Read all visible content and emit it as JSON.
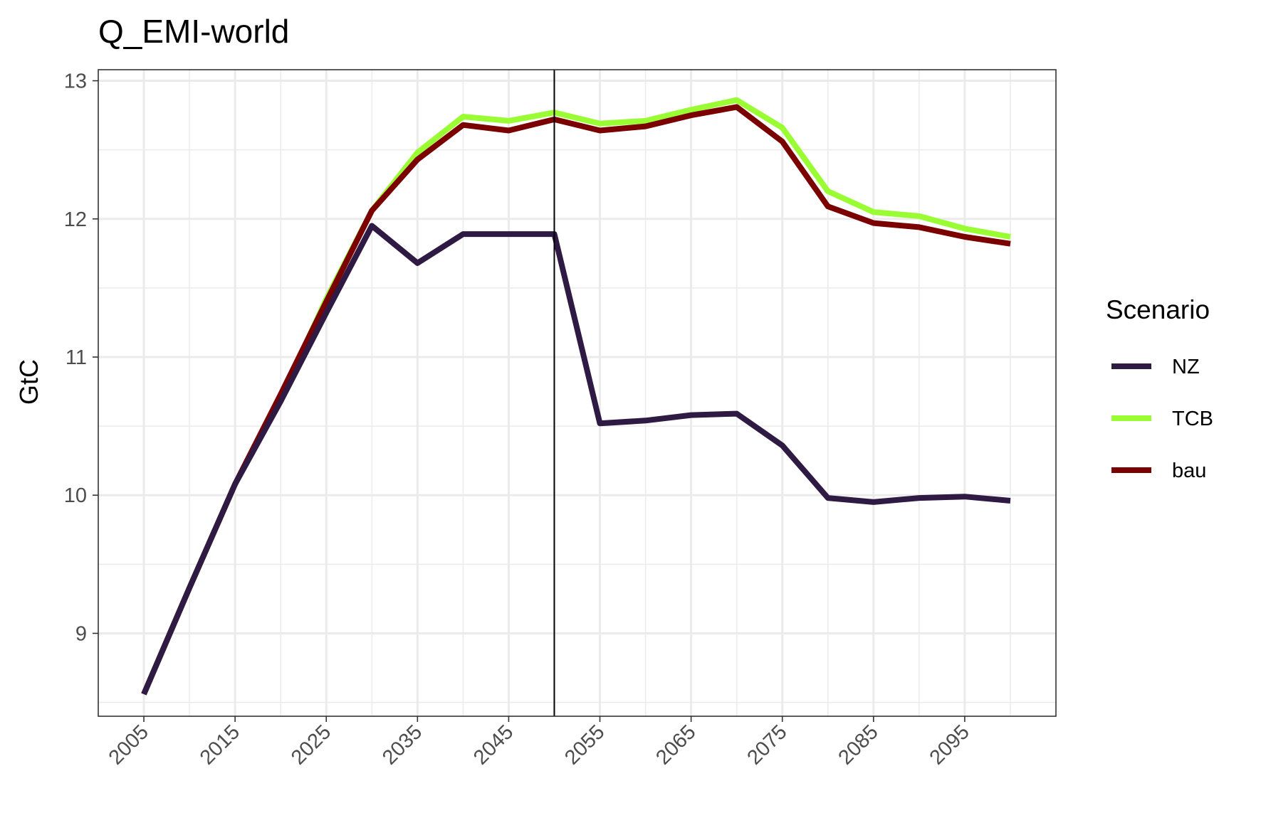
{
  "chart_data": {
    "type": "line",
    "title": "Q_EMI-world",
    "xlabel": "",
    "ylabel": "GtC",
    "xlim": [
      2000,
      2105
    ],
    "ylim": [
      8.4,
      13.08
    ],
    "x_ticks": [
      2005,
      2015,
      2025,
      2035,
      2045,
      2055,
      2065,
      2075,
      2085,
      2095
    ],
    "x_tick_labels": [
      "2005",
      "2015",
      "2025",
      "2035",
      "2045",
      "2055",
      "2065",
      "2075",
      "2085",
      "2095"
    ],
    "x_minor_grid": [
      2010,
      2020,
      2030,
      2040,
      2050,
      2060,
      2070,
      2080,
      2090,
      2100
    ],
    "y_ticks": [
      9,
      10,
      11,
      12,
      13
    ],
    "y_tick_labels": [
      "9",
      "10",
      "11",
      "12",
      "13"
    ],
    "y_minor_grid": [
      8.5,
      9.5,
      10.5,
      11.5,
      12.5
    ],
    "grid": true,
    "vline": 2050,
    "legend_title": "Scenario",
    "legend_position": "right",
    "x": [
      2005,
      2010,
      2015,
      2020,
      2025,
      2030,
      2035,
      2040,
      2045,
      2050,
      2055,
      2060,
      2065,
      2070,
      2075,
      2080,
      2085,
      2090,
      2095,
      2100
    ],
    "series": [
      {
        "name": "TCB",
        "color": "#9afc33",
        "values": [
          8.56,
          9.33,
          10.08,
          10.7,
          11.42,
          12.06,
          12.48,
          12.74,
          12.71,
          12.77,
          12.69,
          12.71,
          12.79,
          12.86,
          12.66,
          12.2,
          12.05,
          12.02,
          11.93,
          11.87
        ]
      },
      {
        "name": "bau",
        "color": "#7b0000",
        "values": [
          8.56,
          9.33,
          10.08,
          10.73,
          11.4,
          12.06,
          12.43,
          12.68,
          12.64,
          12.72,
          12.64,
          12.67,
          12.75,
          12.81,
          12.56,
          12.09,
          11.97,
          11.94,
          11.87,
          11.82
        ]
      },
      {
        "name": "NZ",
        "color": "#2e1a42",
        "values": [
          8.56,
          9.33,
          10.08,
          10.68,
          11.32,
          11.95,
          11.68,
          11.89,
          11.89,
          11.89,
          10.52,
          10.54,
          10.58,
          10.59,
          10.36,
          9.98,
          9.95,
          9.98,
          9.99,
          9.96
        ]
      }
    ],
    "legend_entries": [
      {
        "name": "NZ",
        "color": "#2e1a42"
      },
      {
        "name": "TCB",
        "color": "#9afc33"
      },
      {
        "name": "bau",
        "color": "#7b0000"
      }
    ]
  }
}
